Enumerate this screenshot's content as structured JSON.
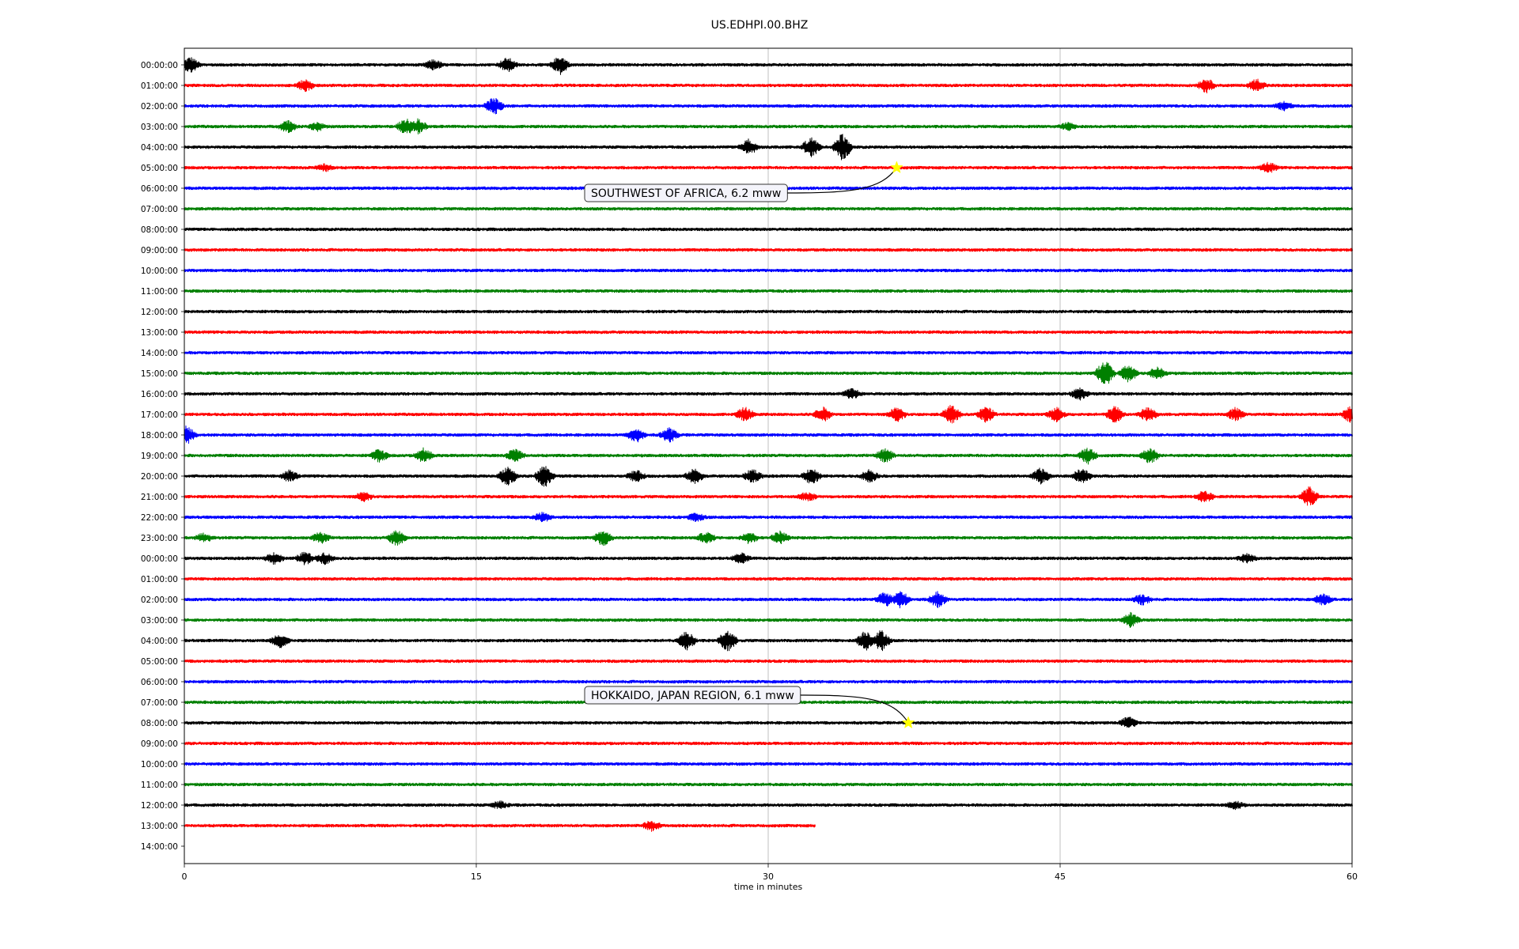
{
  "chart_data": {
    "type": "line",
    "title": "US.EDHPI.00.BHZ",
    "xlabel": "time in minutes",
    "ylabel": "",
    "xlim": [
      0,
      60
    ],
    "x_ticks": [
      "0",
      "15",
      "30",
      "45",
      "60"
    ],
    "x_tick_values": [
      0,
      15,
      30,
      45,
      60
    ],
    "grid": "vertical",
    "row_labels": [
      "00:00:00",
      "01:00:00",
      "02:00:00",
      "03:00:00",
      "04:00:00",
      "05:00:00",
      "06:00:00",
      "07:00:00",
      "08:00:00",
      "09:00:00",
      "10:00:00",
      "11:00:00",
      "12:00:00",
      "13:00:00",
      "14:00:00",
      "15:00:00",
      "16:00:00",
      "17:00:00",
      "18:00:00",
      "19:00:00",
      "20:00:00",
      "21:00:00",
      "22:00:00",
      "23:00:00",
      "00:00:00",
      "01:00:00",
      "02:00:00",
      "03:00:00",
      "04:00:00",
      "05:00:00",
      "06:00:00",
      "07:00:00",
      "08:00:00",
      "09:00:00",
      "10:00:00",
      "11:00:00",
      "12:00:00",
      "13:00:00",
      "14:00:00"
    ],
    "trace_colors": [
      "#000000",
      "#ff0000",
      "#0000ff",
      "#008000"
    ],
    "trace_end_minutes": [
      60,
      60,
      60,
      60,
      60,
      60,
      60,
      60,
      60,
      60,
      60,
      60,
      60,
      60,
      60,
      60,
      60,
      60,
      60,
      60,
      60,
      60,
      60,
      60,
      60,
      60,
      60,
      60,
      60,
      60,
      60,
      60,
      60,
      60,
      60,
      60,
      60,
      32.4,
      0
    ],
    "bursts": [
      {
        "row": 0,
        "t": 0.3,
        "amp": 2.2
      },
      {
        "row": 0,
        "t": 12.8,
        "amp": 1.4
      },
      {
        "row": 0,
        "t": 16.6,
        "amp": 2.0
      },
      {
        "row": 0,
        "t": 19.3,
        "amp": 2.6
      },
      {
        "row": 1,
        "t": 6.2,
        "amp": 1.6
      },
      {
        "row": 1,
        "t": 52.5,
        "amp": 2.0
      },
      {
        "row": 1,
        "t": 55.1,
        "amp": 1.8
      },
      {
        "row": 2,
        "t": 15.9,
        "amp": 2.4
      },
      {
        "row": 2,
        "t": 56.5,
        "amp": 1.2
      },
      {
        "row": 3,
        "t": 5.3,
        "amp": 1.8
      },
      {
        "row": 3,
        "t": 6.8,
        "amp": 1.2
      },
      {
        "row": 3,
        "t": 11.4,
        "amp": 2.4
      },
      {
        "row": 3,
        "t": 12.0,
        "amp": 2.0
      },
      {
        "row": 3,
        "t": 45.4,
        "amp": 1.0
      },
      {
        "row": 4,
        "t": 29.0,
        "amp": 2.2
      },
      {
        "row": 4,
        "t": 32.2,
        "amp": 2.8
      },
      {
        "row": 4,
        "t": 33.8,
        "amp": 4.0
      },
      {
        "row": 5,
        "t": 7.2,
        "amp": 1.0
      },
      {
        "row": 5,
        "t": 55.7,
        "amp": 1.4
      },
      {
        "row": 15,
        "t": 47.3,
        "amp": 4.0
      },
      {
        "row": 15,
        "t": 48.5,
        "amp": 2.4
      },
      {
        "row": 15,
        "t": 50.0,
        "amp": 1.8
      },
      {
        "row": 16,
        "t": 34.3,
        "amp": 1.4
      },
      {
        "row": 16,
        "t": 46.0,
        "amp": 1.6
      },
      {
        "row": 17,
        "t": 28.8,
        "amp": 2.0
      },
      {
        "row": 17,
        "t": 32.8,
        "amp": 2.0
      },
      {
        "row": 17,
        "t": 36.6,
        "amp": 2.0
      },
      {
        "row": 17,
        "t": 39.4,
        "amp": 2.6
      },
      {
        "row": 17,
        "t": 41.2,
        "amp": 2.2
      },
      {
        "row": 17,
        "t": 44.8,
        "amp": 2.0
      },
      {
        "row": 17,
        "t": 47.8,
        "amp": 2.4
      },
      {
        "row": 17,
        "t": 49.5,
        "amp": 2.0
      },
      {
        "row": 17,
        "t": 54.0,
        "amp": 1.8
      },
      {
        "row": 17,
        "t": 59.9,
        "amp": 2.2
      },
      {
        "row": 18,
        "t": 0.1,
        "amp": 2.6
      },
      {
        "row": 18,
        "t": 23.2,
        "amp": 2.0
      },
      {
        "row": 18,
        "t": 24.9,
        "amp": 2.0
      },
      {
        "row": 19,
        "t": 10.0,
        "amp": 1.8
      },
      {
        "row": 19,
        "t": 12.3,
        "amp": 2.0
      },
      {
        "row": 19,
        "t": 17.0,
        "amp": 2.0
      },
      {
        "row": 19,
        "t": 36.0,
        "amp": 2.0
      },
      {
        "row": 19,
        "t": 46.4,
        "amp": 2.4
      },
      {
        "row": 19,
        "t": 49.6,
        "amp": 2.2
      },
      {
        "row": 20,
        "t": 5.4,
        "amp": 1.6
      },
      {
        "row": 20,
        "t": 16.6,
        "amp": 2.8
      },
      {
        "row": 20,
        "t": 18.5,
        "amp": 3.2
      },
      {
        "row": 20,
        "t": 23.2,
        "amp": 1.6
      },
      {
        "row": 20,
        "t": 26.2,
        "amp": 2.0
      },
      {
        "row": 20,
        "t": 29.2,
        "amp": 2.0
      },
      {
        "row": 20,
        "t": 32.2,
        "amp": 2.4
      },
      {
        "row": 20,
        "t": 35.2,
        "amp": 1.8
      },
      {
        "row": 20,
        "t": 44.0,
        "amp": 2.2
      },
      {
        "row": 20,
        "t": 46.1,
        "amp": 2.2
      },
      {
        "row": 21,
        "t": 9.2,
        "amp": 1.2
      },
      {
        "row": 21,
        "t": 32.0,
        "amp": 1.2
      },
      {
        "row": 21,
        "t": 52.4,
        "amp": 1.6
      },
      {
        "row": 21,
        "t": 57.8,
        "amp": 2.8
      },
      {
        "row": 22,
        "t": 18.4,
        "amp": 1.2
      },
      {
        "row": 22,
        "t": 26.3,
        "amp": 1.0
      },
      {
        "row": 23,
        "t": 1.0,
        "amp": 1.2
      },
      {
        "row": 23,
        "t": 7.0,
        "amp": 1.6
      },
      {
        "row": 23,
        "t": 10.9,
        "amp": 2.2
      },
      {
        "row": 23,
        "t": 21.5,
        "amp": 2.2
      },
      {
        "row": 23,
        "t": 26.8,
        "amp": 1.6
      },
      {
        "row": 23,
        "t": 29.0,
        "amp": 1.6
      },
      {
        "row": 23,
        "t": 30.6,
        "amp": 1.8
      },
      {
        "row": 24,
        "t": 4.6,
        "amp": 1.6
      },
      {
        "row": 24,
        "t": 6.2,
        "amp": 1.8
      },
      {
        "row": 24,
        "t": 7.2,
        "amp": 1.6
      },
      {
        "row": 24,
        "t": 28.6,
        "amp": 1.4
      },
      {
        "row": 24,
        "t": 54.6,
        "amp": 1.2
      },
      {
        "row": 26,
        "t": 36.0,
        "amp": 2.0
      },
      {
        "row": 26,
        "t": 36.8,
        "amp": 2.4
      },
      {
        "row": 26,
        "t": 38.7,
        "amp": 2.2
      },
      {
        "row": 26,
        "t": 49.2,
        "amp": 1.4
      },
      {
        "row": 26,
        "t": 58.5,
        "amp": 1.6
      },
      {
        "row": 27,
        "t": 48.6,
        "amp": 2.0
      },
      {
        "row": 28,
        "t": 4.9,
        "amp": 2.0
      },
      {
        "row": 28,
        "t": 25.8,
        "amp": 2.6
      },
      {
        "row": 28,
        "t": 27.9,
        "amp": 3.0
      },
      {
        "row": 28,
        "t": 35.0,
        "amp": 3.0
      },
      {
        "row": 28,
        "t": 35.8,
        "amp": 3.0
      },
      {
        "row": 32,
        "t": 48.5,
        "amp": 1.6
      },
      {
        "row": 36,
        "t": 16.2,
        "amp": 1.0
      },
      {
        "row": 36,
        "t": 54.0,
        "amp": 1.0
      },
      {
        "row": 37,
        "t": 24.0,
        "amp": 1.4
      }
    ],
    "events": [
      {
        "label": "SOUTHWEST OF AFRICA, 6.2 mww",
        "row": 5,
        "t": 36.6
      },
      {
        "label": "HOKKAIDO, JAPAN REGION, 6.1 mww",
        "row": 32,
        "t": 37.2
      }
    ],
    "event_marker_color": "#ffff00"
  }
}
